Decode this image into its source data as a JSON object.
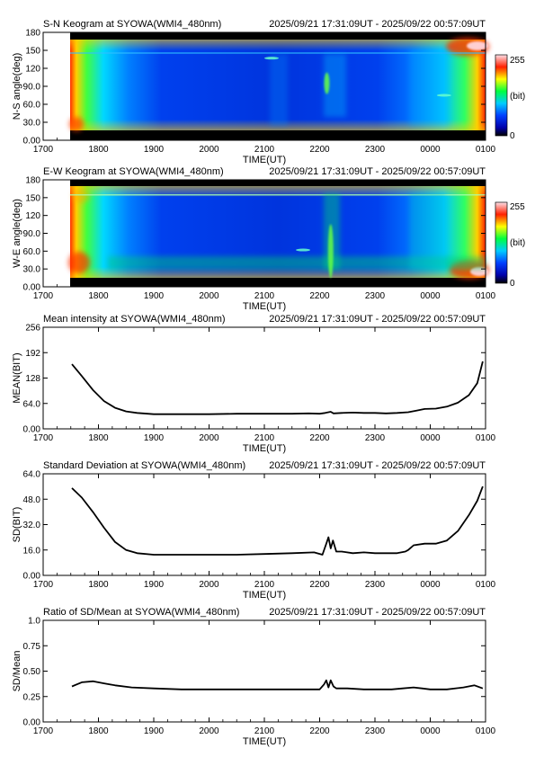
{
  "chart_data": [
    {
      "type": "heatmap",
      "title": "S-N Keogram at SYOWA(WMI4_480nm)",
      "time_range": "2025/09/21 17:31:09UT - 2025/09/22 00:57:09UT",
      "xlabel": "TIME(UT)",
      "ylabel": "N-S angle(deg)",
      "x_ticks": [
        "1700",
        "1800",
        "1900",
        "2000",
        "2100",
        "2200",
        "2300",
        "0000",
        "0100"
      ],
      "y_ticks": [
        "0.00",
        "30.0",
        "60.0",
        "90.0",
        "120",
        "150",
        "180"
      ],
      "ylim": [
        0,
        180
      ],
      "data_x_range": [
        17.52,
        24.95
      ],
      "colorbar": {
        "min": "0",
        "max": "255",
        "unit": "(bit)"
      },
      "features": [
        {
          "x": 21.13,
          "y": 137,
          "kind": "streak"
        },
        {
          "x": 22.13,
          "y": 95,
          "kind": "arc"
        },
        {
          "x": 24.25,
          "y": 75,
          "kind": "streak"
        }
      ]
    },
    {
      "type": "heatmap",
      "title": "E-W Keogram at SYOWA(WMI4_480nm)",
      "time_range": "2025/09/21 17:31:09UT - 2025/09/22 00:57:09UT",
      "xlabel": "TIME(UT)",
      "ylabel": "W-E angle(deg)",
      "x_ticks": [
        "1700",
        "1800",
        "1900",
        "2000",
        "2100",
        "2200",
        "2300",
        "0000",
        "0100"
      ],
      "y_ticks": [
        "0.00",
        "30.0",
        "60.0",
        "90.0",
        "120",
        "150",
        "180"
      ],
      "ylim": [
        0,
        180
      ],
      "data_x_range": [
        17.52,
        24.95
      ],
      "colorbar": {
        "min": "0",
        "max": "255",
        "unit": "(bit)"
      },
      "features": [
        {
          "x": 21.7,
          "y": 62,
          "kind": "streak"
        },
        {
          "x": 22.2,
          "y": 60,
          "kind": "arc"
        }
      ]
    },
    {
      "type": "line",
      "title": "Mean intensity at SYOWA(WMI4_480nm)",
      "time_range": "2025/09/21 17:31:09UT - 2025/09/22 00:57:09UT",
      "xlabel": "TIME(UT)",
      "ylabel": "MEAN(BIT)",
      "x_ticks": [
        "1700",
        "1800",
        "1900",
        "2000",
        "2100",
        "2200",
        "2300",
        "0000",
        "0100"
      ],
      "y_ticks": [
        "0.00",
        "64.0",
        "128",
        "192",
        "256"
      ],
      "ylim": [
        0,
        256
      ],
      "series": [
        {
          "x": [
            17.52,
            17.7,
            17.9,
            18.1,
            18.3,
            18.5,
            18.7,
            19.0,
            19.5,
            20.0,
            20.5,
            21.0,
            21.5,
            21.8,
            22.0,
            22.1,
            22.2,
            22.25,
            22.4,
            22.6,
            22.8,
            23.0,
            23.2,
            23.4,
            23.6,
            23.75,
            23.9,
            24.1,
            24.3,
            24.5,
            24.7,
            24.85,
            24.95
          ],
          "y": [
            163,
            133,
            98,
            70,
            53,
            44,
            40,
            37,
            37,
            37,
            38,
            38,
            38,
            39,
            38,
            40,
            43,
            39,
            40,
            41,
            40,
            40,
            39,
            40,
            42,
            46,
            50,
            51,
            56,
            66,
            85,
            115,
            170
          ]
        }
      ]
    },
    {
      "type": "line",
      "title": "Standard Deviation at SYOWA(WMI4_480nm)",
      "time_range": "2025/09/21 17:31:09UT - 2025/09/22 00:57:09UT",
      "xlabel": "TIME(UT)",
      "ylabel": "SD(BIT)",
      "x_ticks": [
        "1700",
        "1800",
        "1900",
        "2000",
        "2100",
        "2200",
        "2300",
        "0000",
        "0100"
      ],
      "y_ticks": [
        "0.00",
        "16.0",
        "32.0",
        "48.0",
        "64.0"
      ],
      "ylim": [
        0,
        64
      ],
      "series": [
        {
          "x": [
            17.52,
            17.7,
            17.9,
            18.1,
            18.3,
            18.5,
            18.7,
            19.0,
            19.5,
            20.0,
            20.5,
            21.0,
            21.5,
            21.9,
            22.05,
            22.12,
            22.16,
            22.2,
            22.24,
            22.3,
            22.4,
            22.6,
            22.8,
            23.0,
            23.2,
            23.4,
            23.55,
            23.6,
            23.7,
            23.9,
            24.1,
            24.3,
            24.5,
            24.7,
            24.85,
            24.95
          ],
          "y": [
            55,
            49,
            40,
            30,
            21,
            16,
            14,
            13,
            13,
            13,
            13,
            13.5,
            14,
            14.5,
            13,
            20,
            24,
            17,
            22,
            15,
            15,
            14,
            14.5,
            14,
            14,
            14,
            15,
            16,
            19,
            20,
            20,
            22,
            28,
            38,
            47,
            56
          ]
        }
      ]
    },
    {
      "type": "line",
      "title": "Ratio of SD/Mean at SYOWA(WMI4_480nm)",
      "time_range": "2025/09/21 17:31:09UT - 2025/09/22 00:57:09UT",
      "xlabel": "TIME(UT)",
      "ylabel": "SD/Mean",
      "x_ticks": [
        "1700",
        "1800",
        "1900",
        "2000",
        "2100",
        "2200",
        "2300",
        "0000",
        "0100"
      ],
      "y_ticks": [
        "0.00",
        "0.25",
        "0.50",
        "0.75",
        "1.0"
      ],
      "ylim": [
        0,
        1
      ],
      "series": [
        {
          "x": [
            17.52,
            17.7,
            17.9,
            18.1,
            18.3,
            18.6,
            19.0,
            19.5,
            20.0,
            20.5,
            21.0,
            21.5,
            22.0,
            22.08,
            22.12,
            22.16,
            22.2,
            22.25,
            22.3,
            22.5,
            22.8,
            23.0,
            23.3,
            23.5,
            23.7,
            23.85,
            24.0,
            24.3,
            24.6,
            24.8,
            24.95
          ],
          "y": [
            0.35,
            0.39,
            0.4,
            0.38,
            0.36,
            0.34,
            0.33,
            0.32,
            0.32,
            0.32,
            0.32,
            0.32,
            0.32,
            0.37,
            0.41,
            0.34,
            0.41,
            0.35,
            0.33,
            0.33,
            0.32,
            0.32,
            0.32,
            0.33,
            0.34,
            0.33,
            0.32,
            0.32,
            0.34,
            0.36,
            0.33
          ]
        }
      ]
    }
  ]
}
